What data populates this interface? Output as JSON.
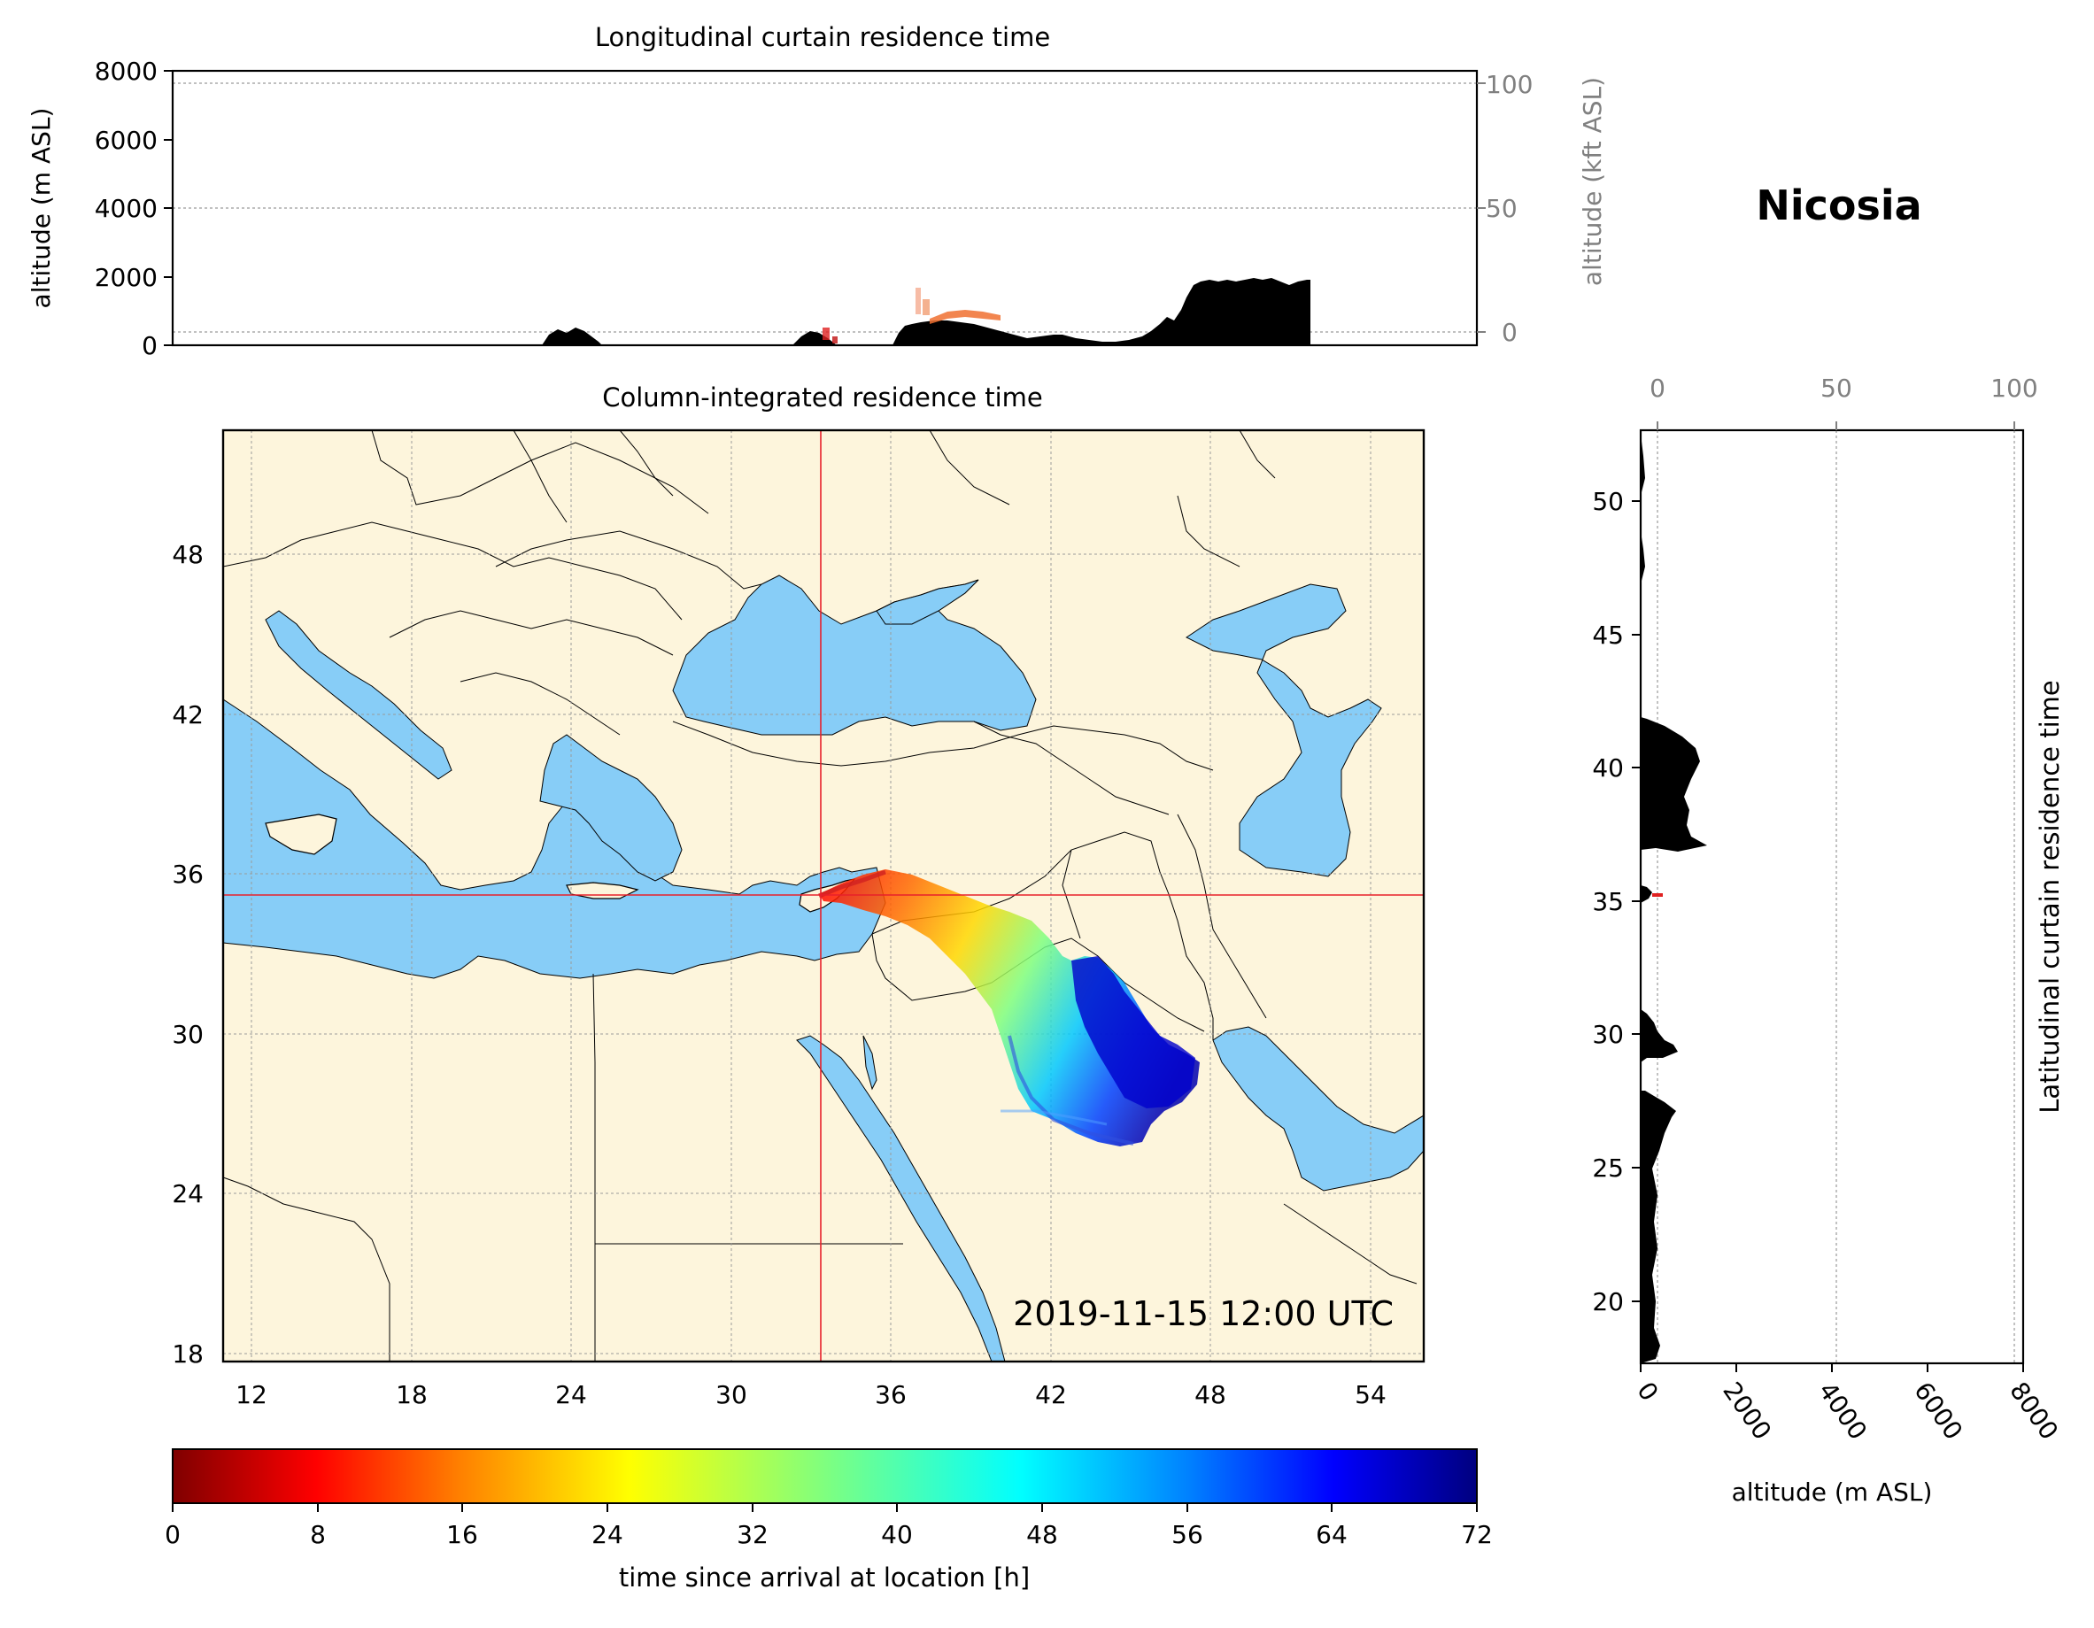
{
  "location_title": "Nicosia",
  "timestamp": "2019-11-15 12:00 UTC",
  "colors": {
    "land": "#fdf5dc",
    "sea": "#87cdf7",
    "terrain": "#000000",
    "crosshair": "#e8202a",
    "grid": "#9a9a9a",
    "secondary_axis": "#808080"
  },
  "longitudinal_curtain": {
    "title": "Longitudinal curtain residence time",
    "ylabel": "altitude (m ASL)",
    "ylabel_right": "altitude (kft ASL)",
    "yticks": [
      "0",
      "2000",
      "4000",
      "6000",
      "8000"
    ],
    "yticks_right": [
      "0",
      "50",
      "100"
    ]
  },
  "map_panel": {
    "title": "Column-integrated residence time",
    "xticks": [
      "12",
      "18",
      "24",
      "30",
      "36",
      "42",
      "48",
      "54"
    ],
    "yticks": [
      "18",
      "24",
      "30",
      "36",
      "42",
      "48"
    ],
    "crosshair": {
      "lon": 33.4,
      "lat": 35.2
    }
  },
  "latitudinal_curtain": {
    "title": "Latitudinal curtain residence time",
    "xlabel": "altitude (m ASL)",
    "xticks": [
      "0",
      "2000",
      "4000",
      "6000",
      "8000"
    ],
    "xticks_top": [
      "0",
      "50",
      "100"
    ],
    "yticks": [
      "20",
      "25",
      "30",
      "35",
      "40",
      "45",
      "50"
    ]
  },
  "colorbar": {
    "label": "time since arrival at location [h]",
    "ticks": [
      "0",
      "8",
      "16",
      "24",
      "32",
      "40",
      "48",
      "56",
      "64",
      "72"
    ],
    "colormap": "jet_r"
  },
  "chart_data": [
    {
      "type": "area",
      "name": "longitudinal-curtain",
      "title": "Longitudinal curtain residence time",
      "xlim": [
        10,
        55
      ],
      "ylim": [
        0,
        8000
      ],
      "ylabel": "altitude (m ASL)",
      "terrain_altitude_m": {
        "x": [
          24,
          25,
          26,
          27,
          33,
          34,
          35,
          36,
          37,
          38,
          40,
          42,
          44,
          46,
          47,
          48,
          49,
          50,
          51,
          52
        ],
        "y": [
          0,
          350,
          300,
          0,
          0,
          350,
          0,
          600,
          700,
          550,
          400,
          300,
          300,
          700,
          1100,
          1900,
          1900,
          2000,
          1800,
          1900
        ]
      }
    },
    {
      "type": "area",
      "name": "latitudinal-curtain",
      "title": "Latitudinal curtain residence time",
      "ylim": [
        17.7,
        52.7
      ],
      "xlim": [
        0,
        8000
      ],
      "xlabel": "altitude (m ASL)",
      "terrain_altitude_m": {
        "lat": [
          18,
          20,
          22,
          24,
          26,
          27,
          28,
          29,
          30,
          31,
          34,
          35,
          36,
          37,
          38,
          39,
          40,
          41,
          42,
          43,
          47,
          50,
          52
        ],
        "alt": [
          300,
          200,
          200,
          150,
          300,
          700,
          400,
          400,
          700,
          300,
          100,
          400,
          100,
          1300,
          700,
          700,
          1000,
          1200,
          600,
          100,
          0,
          100,
          0
        ]
      }
    }
  ]
}
